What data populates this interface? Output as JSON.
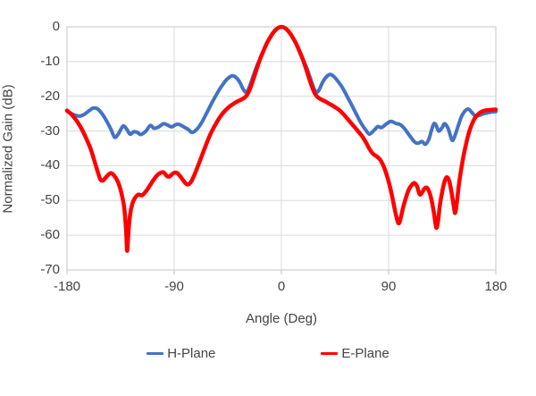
{
  "chart_data": {
    "type": "line",
    "xlabel": "Angle (Deg)",
    "ylabel": "Normalized Gain (dB)",
    "xlim": [
      -180,
      180
    ],
    "ylim": [
      -70,
      0
    ],
    "x_ticks": [
      -180,
      -90,
      0,
      90,
      180
    ],
    "y_ticks": [
      0,
      -10,
      -20,
      -30,
      -40,
      -50,
      -60,
      -70
    ],
    "grid": true,
    "legend_position": "bottom",
    "series": [
      {
        "name": "H-Plane",
        "color": "#4472C4",
        "points": [
          [
            -180,
            -24.3
          ],
          [
            -175,
            -25.2
          ],
          [
            -170,
            -25.7
          ],
          [
            -166,
            -25.3
          ],
          [
            -162,
            -24.3
          ],
          [
            -158,
            -23.4
          ],
          [
            -154,
            -23.7
          ],
          [
            -150,
            -25.3
          ],
          [
            -146,
            -27.6
          ],
          [
            -143,
            -29.6
          ],
          [
            -140,
            -31.8
          ],
          [
            -137,
            -30.9
          ],
          [
            -133,
            -28.6
          ],
          [
            -130,
            -29.4
          ],
          [
            -127,
            -30.9
          ],
          [
            -124,
            -30.2
          ],
          [
            -121,
            -30.4
          ],
          [
            -118,
            -31.0
          ],
          [
            -114,
            -30.1
          ],
          [
            -110,
            -28.4
          ],
          [
            -107,
            -29.2
          ],
          [
            -103,
            -28.8
          ],
          [
            -99,
            -27.9
          ],
          [
            -96,
            -28.2
          ],
          [
            -92,
            -28.8
          ],
          [
            -89,
            -28.2
          ],
          [
            -86,
            -28.1
          ],
          [
            -82,
            -28.8
          ],
          [
            -78,
            -29.6
          ],
          [
            -75,
            -30.4
          ],
          [
            -71,
            -29.5
          ],
          [
            -67,
            -27.6
          ],
          [
            -63,
            -25.0
          ],
          [
            -59,
            -22.3
          ],
          [
            -55,
            -19.8
          ],
          [
            -51,
            -17.5
          ],
          [
            -47,
            -15.6
          ],
          [
            -44,
            -14.6
          ],
          [
            -41,
            -14.1
          ],
          [
            -38,
            -14.6
          ],
          [
            -35,
            -15.9
          ],
          [
            -32,
            -18.0
          ],
          [
            -30,
            -18.8
          ],
          [
            -28,
            -18.2
          ],
          [
            -26,
            -16.5
          ],
          [
            -23,
            -13.5
          ],
          [
            -21,
            -11.6
          ],
          [
            -18,
            -9.2
          ],
          [
            -15,
            -6.8
          ],
          [
            -12,
            -4.6
          ],
          [
            -9,
            -2.8
          ],
          [
            -6,
            -1.3
          ],
          [
            -3,
            -0.35
          ],
          [
            0,
            0
          ],
          [
            3,
            -0.35
          ],
          [
            6,
            -1.3
          ],
          [
            9,
            -2.8
          ],
          [
            12,
            -4.6
          ],
          [
            15,
            -6.8
          ],
          [
            18,
            -9.2
          ],
          [
            21,
            -11.6
          ],
          [
            23,
            -13.5
          ],
          [
            26,
            -16.5
          ],
          [
            28,
            -18.2
          ],
          [
            30,
            -18.8
          ],
          [
            32,
            -17.9
          ],
          [
            35,
            -15.7
          ],
          [
            38,
            -14.3
          ],
          [
            41,
            -13.7
          ],
          [
            44,
            -14.3
          ],
          [
            47,
            -15.5
          ],
          [
            51,
            -17.4
          ],
          [
            55,
            -19.9
          ],
          [
            59,
            -22.5
          ],
          [
            63,
            -25.2
          ],
          [
            67,
            -27.8
          ],
          [
            71,
            -29.8
          ],
          [
            74,
            -30.9
          ],
          [
            78,
            -29.7
          ],
          [
            81,
            -28.7
          ],
          [
            84,
            -29.0
          ],
          [
            88,
            -28.0
          ],
          [
            92,
            -27.2
          ],
          [
            96,
            -27.8
          ],
          [
            100,
            -28.2
          ],
          [
            104,
            -29.6
          ],
          [
            108,
            -31.5
          ],
          [
            112,
            -33.2
          ],
          [
            115,
            -33.5
          ],
          [
            118,
            -33.0
          ],
          [
            121,
            -33.8
          ],
          [
            124,
            -32.2
          ],
          [
            126,
            -29.8
          ],
          [
            128,
            -27.9
          ],
          [
            130,
            -28.4
          ],
          [
            132,
            -30.0
          ],
          [
            135,
            -29.0
          ],
          [
            137,
            -27.9
          ],
          [
            140,
            -29.3
          ],
          [
            143,
            -32.5
          ],
          [
            145,
            -32.0
          ],
          [
            148,
            -29.0
          ],
          [
            151,
            -26.0
          ],
          [
            154,
            -24.3
          ],
          [
            157,
            -23.7
          ],
          [
            160,
            -24.7
          ],
          [
            163,
            -25.7
          ],
          [
            166,
            -25.5
          ],
          [
            170,
            -25.0
          ],
          [
            175,
            -24.6
          ],
          [
            180,
            -24.4
          ]
        ]
      },
      {
        "name": "E-Plane",
        "color": "#FF0000",
        "points": [
          [
            -180,
            -24.1
          ],
          [
            -176,
            -25.3
          ],
          [
            -172,
            -27.0
          ],
          [
            -168,
            -29.2
          ],
          [
            -164,
            -32.0
          ],
          [
            -160,
            -35.3
          ],
          [
            -157,
            -38.6
          ],
          [
            -154,
            -42.0
          ],
          [
            -152,
            -43.9
          ],
          [
            -150,
            -44.3
          ],
          [
            -148,
            -43.6
          ],
          [
            -145,
            -42.5
          ],
          [
            -143,
            -42.1
          ],
          [
            -141,
            -42.6
          ],
          [
            -138,
            -44.1
          ],
          [
            -136,
            -45.8
          ],
          [
            -134,
            -48.3
          ],
          [
            -132,
            -52.0
          ],
          [
            -130.5,
            -58.0
          ],
          [
            -129.5,
            -64.5
          ],
          [
            -128.5,
            -59.5
          ],
          [
            -127,
            -54.0
          ],
          [
            -125,
            -50.8
          ],
          [
            -123,
            -49.3
          ],
          [
            -120,
            -48.3
          ],
          [
            -117,
            -48.5
          ],
          [
            -114,
            -47.5
          ],
          [
            -111,
            -46.0
          ],
          [
            -108,
            -44.4
          ],
          [
            -105,
            -43.0
          ],
          [
            -102,
            -42.1
          ],
          [
            -99,
            -41.9
          ],
          [
            -96,
            -43.0
          ],
          [
            -94,
            -43.1
          ],
          [
            -91,
            -42.2
          ],
          [
            -88,
            -42.0
          ],
          [
            -85,
            -43.0
          ],
          [
            -82,
            -44.4
          ],
          [
            -79,
            -45.4
          ],
          [
            -76,
            -44.7
          ],
          [
            -73,
            -42.6
          ],
          [
            -70,
            -40.0
          ],
          [
            -67,
            -37.3
          ],
          [
            -64,
            -34.6
          ],
          [
            -61,
            -32.0
          ],
          [
            -58,
            -29.8
          ],
          [
            -55,
            -27.9
          ],
          [
            -52,
            -26.2
          ],
          [
            -49,
            -24.8
          ],
          [
            -46,
            -23.7
          ],
          [
            -43,
            -22.8
          ],
          [
            -40,
            -22.1
          ],
          [
            -37,
            -21.5
          ],
          [
            -34,
            -21.0
          ],
          [
            -31,
            -20.4
          ],
          [
            -29,
            -19.7
          ],
          [
            -27,
            -18.4
          ],
          [
            -25,
            -16.6
          ],
          [
            -23,
            -14.6
          ],
          [
            -21,
            -12.4
          ],
          [
            -18,
            -9.4
          ],
          [
            -15,
            -6.9
          ],
          [
            -12,
            -4.6
          ],
          [
            -9,
            -2.8
          ],
          [
            -6,
            -1.3
          ],
          [
            -3,
            -0.35
          ],
          [
            0,
            0
          ],
          [
            3,
            -0.35
          ],
          [
            6,
            -1.3
          ],
          [
            9,
            -2.8
          ],
          [
            12,
            -4.6
          ],
          [
            15,
            -6.9
          ],
          [
            18,
            -9.4
          ],
          [
            21,
            -12.4
          ],
          [
            23,
            -14.6
          ],
          [
            25,
            -16.6
          ],
          [
            27,
            -18.4
          ],
          [
            29,
            -19.7
          ],
          [
            31,
            -20.4
          ],
          [
            34,
            -21.0
          ],
          [
            37,
            -21.5
          ],
          [
            40,
            -22.1
          ],
          [
            44,
            -22.9
          ],
          [
            48,
            -23.8
          ],
          [
            52,
            -25.1
          ],
          [
            56,
            -26.7
          ],
          [
            60,
            -28.3
          ],
          [
            64,
            -29.9
          ],
          [
            68,
            -31.6
          ],
          [
            71,
            -33.3
          ],
          [
            74,
            -35.2
          ],
          [
            77,
            -36.6
          ],
          [
            80,
            -37.3
          ],
          [
            83,
            -38.3
          ],
          [
            86,
            -40.3
          ],
          [
            89,
            -43.3
          ],
          [
            92,
            -47.3
          ],
          [
            95,
            -52.3
          ],
          [
            97,
            -55.3
          ],
          [
            98.5,
            -56.6
          ],
          [
            100,
            -55.3
          ],
          [
            102,
            -52.3
          ],
          [
            104,
            -49.8
          ],
          [
            107,
            -46.8
          ],
          [
            110,
            -45.3
          ],
          [
            112,
            -45.0
          ],
          [
            114,
            -46.0
          ],
          [
            116,
            -48.2
          ],
          [
            118,
            -47.8
          ],
          [
            120,
            -46.6
          ],
          [
            122,
            -46.3
          ],
          [
            124,
            -47.4
          ],
          [
            126,
            -49.8
          ],
          [
            128,
            -53.5
          ],
          [
            130,
            -57.8
          ],
          [
            131.5,
            -56.0
          ],
          [
            133,
            -51.5
          ],
          [
            135,
            -47.5
          ],
          [
            137,
            -44.5
          ],
          [
            139,
            -43.3
          ],
          [
            141,
            -44.5
          ],
          [
            143,
            -48.0
          ],
          [
            145,
            -52.3
          ],
          [
            146,
            -53.5
          ],
          [
            147.5,
            -50.0
          ],
          [
            149,
            -45.5
          ],
          [
            151,
            -41.0
          ],
          [
            153,
            -37.0
          ],
          [
            155,
            -33.8
          ],
          [
            157,
            -31.0
          ],
          [
            159,
            -28.9
          ],
          [
            161,
            -27.2
          ],
          [
            163,
            -26.0
          ],
          [
            166,
            -24.9
          ],
          [
            169,
            -24.3
          ],
          [
            172,
            -24.0
          ],
          [
            176,
            -23.9
          ],
          [
            180,
            -23.8
          ]
        ]
      }
    ]
  },
  "colors": {
    "h_plane": "#4472C4",
    "e_plane": "#FF0000",
    "gridline": "#D9D9D9",
    "border": "#C6C6C6",
    "tick_mark": "#BFBFBF",
    "text": "#444444",
    "background": "#FFFFFF"
  }
}
